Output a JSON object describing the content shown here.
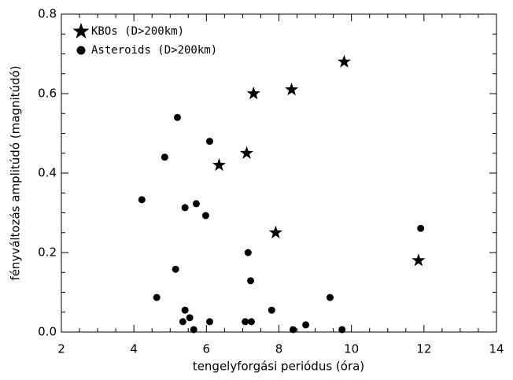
{
  "chart_data": {
    "type": "scatter",
    "xlabel": "tengelyforgási periódus (óra)",
    "ylabel": "fényváltozás amplitúdó (magnitúdó)",
    "xlim": [
      2,
      14
    ],
    "xticks": [
      2,
      4,
      6,
      8,
      10,
      12,
      14
    ],
    "ylim": [
      0,
      0.8
    ],
    "yticks": [
      {
        "value": 0,
        "label": "0.0"
      },
      0.2,
      0.4,
      0.6,
      0.8
    ],
    "legend": "upper left",
    "series": [
      {
        "name": "KBOs (D>200km)",
        "marker": "star",
        "color": "#000000",
        "x": [
          9.8,
          8.35,
          7.3,
          7.11,
          6.35,
          7.91,
          11.85
        ],
        "values": [
          0.68,
          0.61,
          0.6,
          0.45,
          0.42,
          0.25,
          0.18
        ]
      },
      {
        "name": "Asteroids (D>200km)",
        "marker": "circle",
        "color": "#000000",
        "x": [
          5.2,
          6.09,
          4.85,
          4.22,
          5.72,
          5.41,
          5.98,
          11.91,
          7.15,
          5.15,
          7.22,
          4.63,
          9.41,
          5.41,
          7.8,
          5.54,
          5.35,
          6.09,
          7.07,
          7.24,
          8.74,
          5.65,
          8.39,
          9.74
        ],
        "values": [
          0.54,
          0.48,
          0.44,
          0.333,
          0.323,
          0.313,
          0.293,
          0.261,
          0.2,
          0.158,
          0.129,
          0.087,
          0.087,
          0.055,
          0.055,
          0.036,
          0.026,
          0.026,
          0.026,
          0.026,
          0.018,
          0.006,
          0.006,
          0.006
        ]
      }
    ]
  }
}
